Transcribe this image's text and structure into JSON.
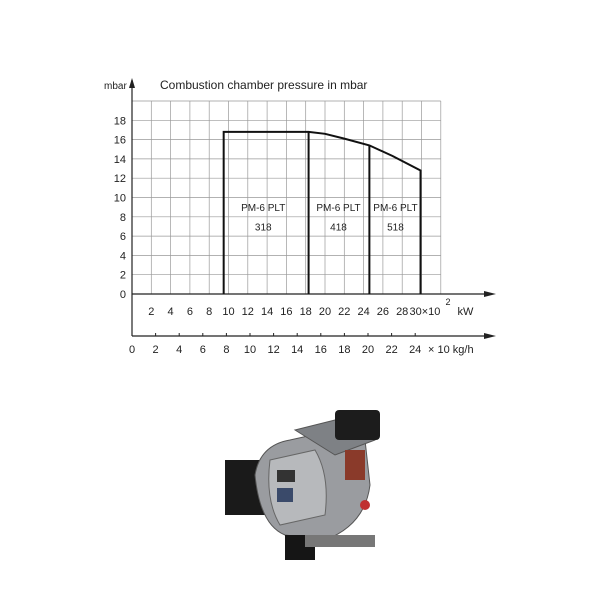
{
  "chart_data": {
    "type": "line",
    "title": "Combustion chamber pressure in mbar",
    "ylabel": "mbar",
    "ylim": [
      0,
      20
    ],
    "yticks": [
      0,
      2,
      4,
      6,
      8,
      10,
      12,
      14,
      16,
      18
    ],
    "x_primary": {
      "unit_label": "kW",
      "suffix": "30×10",
      "exponent": "2",
      "ticks": [
        2,
        4,
        6,
        8,
        10,
        12,
        14,
        16,
        18,
        20,
        22,
        24,
        26,
        28
      ],
      "last_tick": 30,
      "xlim": [
        0,
        32
      ]
    },
    "x_secondary": {
      "unit_label": "× 10  kg/h",
      "ticks": [
        0,
        2,
        4,
        6,
        8,
        10,
        12,
        14,
        16,
        18,
        20,
        22,
        24
      ]
    },
    "grid": true,
    "envelope": {
      "x": [
        9.5,
        9.5,
        18.3,
        20,
        22,
        24.6,
        27,
        29.9,
        29.9
      ],
      "y": [
        0,
        16.8,
        16.8,
        16.6,
        16.1,
        15.4,
        14.3,
        12.8,
        0
      ]
    },
    "dividers_kW": [
      18.3,
      24.6
    ],
    "regions": [
      {
        "model": "PM-6 PLT",
        "size": "318"
      },
      {
        "model": "PM-6 PLT",
        "size": "418"
      },
      {
        "model": "PM-6 PLT",
        "size": "518"
      }
    ]
  },
  "image": {
    "subject": "burner-photo"
  }
}
